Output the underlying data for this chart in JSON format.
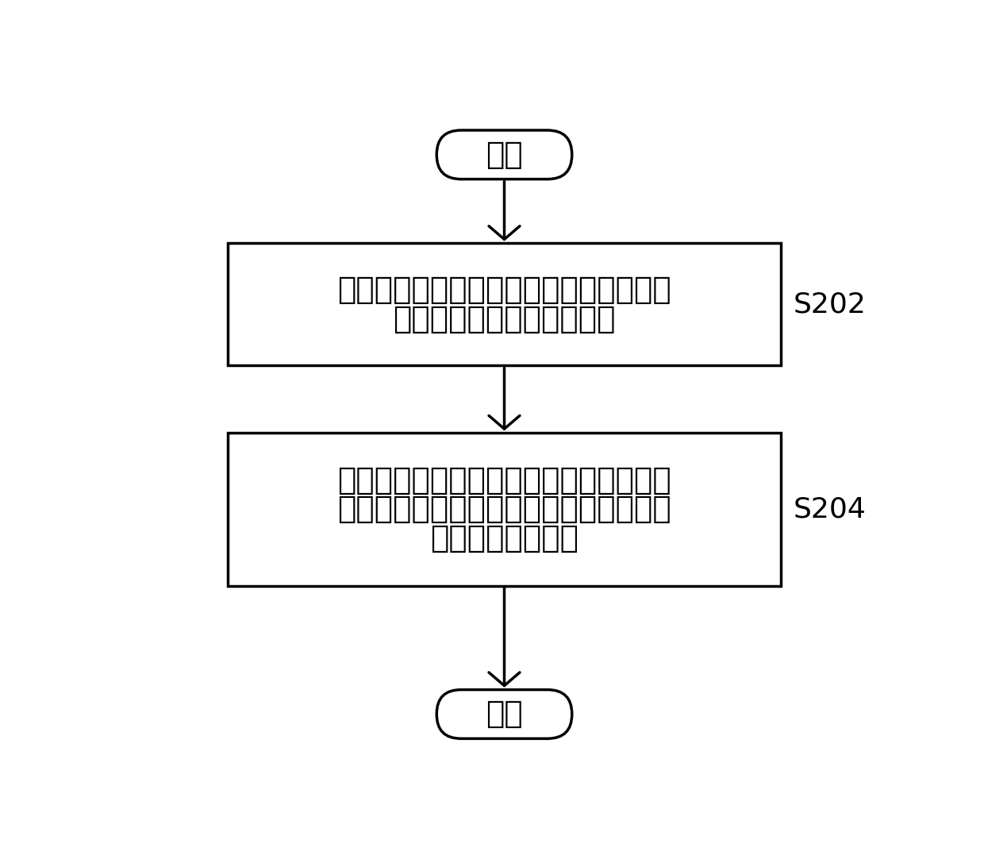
{
  "bg_color": "#ffffff",
  "border_color": "#000000",
  "text_color": "#000000",
  "arrow_color": "#000000",
  "start_label": "开始",
  "end_label": "结束",
  "box1_line1": "获取当前车辆偏离原车道的偏离信息，以",
  "box1_line2": "及获取目标车道的限制条件",
  "box2_line1": "若所述偏离信息与所述限制条件不匹配，",
  "box2_line2": "则输出警告指令，所述警告指令用于控制",
  "box2_line3": "警告装置发出警告",
  "label1": "S202",
  "label2": "S204",
  "font_size_box": 28,
  "font_size_terminal": 28,
  "font_size_label": 26,
  "figsize": [
    12.4,
    10.78
  ],
  "dpi": 100,
  "lw": 2.5
}
